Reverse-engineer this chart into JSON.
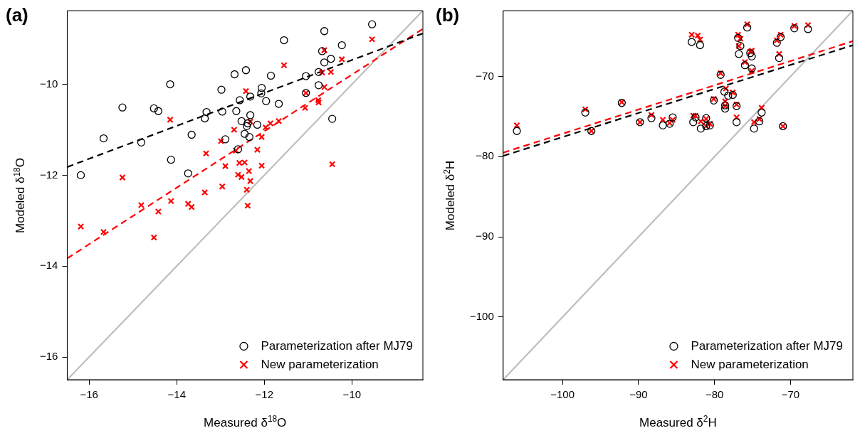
{
  "chart_data": [
    {
      "type": "scatter",
      "title": "(a)",
      "xlabel": "Measured δ$^{18}$O",
      "ylabel": "Modeled δ$^{18}$O",
      "xlim": [
        -16.5,
        -8.38
      ],
      "ylim": [
        -16.5,
        -8.38
      ],
      "xticks": [
        -16,
        -14,
        -12,
        -10
      ],
      "yticks": [
        -16,
        -14,
        -12,
        -10
      ],
      "grid": false,
      "legend": "bottom right",
      "series": [
        {
          "name": "Parameterization after MJ79",
          "color": "#000000",
          "marker": "circle",
          "x": [
            -9.54,
            -10.63,
            -11.55,
            -10.23,
            -10.68,
            -10.48,
            -10.63,
            -12.42,
            -12.68,
            -11.85,
            -11.05,
            -10.76,
            -14.15,
            -10.76,
            -12.98,
            -12.06,
            -12.07,
            -11.05,
            -12.32,
            -12.56,
            -11.96,
            -11.67,
            -15.24,
            -14.52,
            -14.42,
            -13.32,
            -12.96,
            -12.64,
            -13.36,
            -10.45,
            -12.32,
            -12.52,
            -12.38,
            -12.4,
            -12.16,
            -13.66,
            -12.45,
            -12.34,
            -12.89,
            -15.67,
            -14.81,
            -12.6,
            -14.13,
            -16.19,
            -13.74
          ],
          "values": [
            -8.68,
            -8.83,
            -9.03,
            -9.14,
            -9.27,
            -9.44,
            -9.52,
            -9.69,
            -9.78,
            -9.81,
            -9.82,
            -9.73,
            -10.0,
            -10.02,
            -10.12,
            -10.08,
            -10.2,
            -10.19,
            -10.27,
            -10.35,
            -10.37,
            -10.43,
            -10.51,
            -10.53,
            -10.59,
            -10.61,
            -10.6,
            -10.59,
            -10.75,
            -10.76,
            -10.68,
            -10.81,
            -10.86,
            -10.92,
            -10.89,
            -11.11,
            -11.09,
            -11.16,
            -11.21,
            -11.19,
            -11.28,
            -11.43,
            -11.66,
            -12.0,
            -11.96
          ]
        },
        {
          "name": "New parameterization",
          "color": "#ff0000",
          "marker": "cross",
          "x": [
            -9.54,
            -10.63,
            -11.55,
            -10.23,
            -10.68,
            -10.48,
            -10.63,
            -12.42,
            -11.05,
            -10.77,
            -10.76,
            -11.07,
            -14.15,
            -12.32,
            -11.67,
            -11.86,
            -11.97,
            -12.69,
            -12.06,
            -12.99,
            -13.33,
            -12.65,
            -12.16,
            -12.89,
            -12.57,
            -12.45,
            -12.06,
            -10.45,
            -12.35,
            -12.6,
            -12.52,
            -12.32,
            -15.24,
            -12.96,
            -13.36,
            -12.4,
            -14.81,
            -14.13,
            -13.74,
            -13.66,
            -12.38,
            -14.42,
            -16.19,
            -15.67,
            -14.52
          ],
          "values": [
            -9.01,
            -9.25,
            -9.58,
            -9.45,
            -9.74,
            -9.73,
            -10.06,
            -10.15,
            -10.19,
            -10.35,
            -10.4,
            -10.52,
            -10.78,
            -10.82,
            -10.81,
            -10.86,
            -10.95,
            -11.0,
            -11.16,
            -11.25,
            -11.52,
            -11.46,
            -11.44,
            -11.8,
            -11.73,
            -11.72,
            -11.79,
            -11.76,
            -11.91,
            -11.99,
            -12.04,
            -12.13,
            -12.05,
            -12.25,
            -12.38,
            -12.32,
            -12.66,
            -12.57,
            -12.63,
            -12.7,
            -12.67,
            -12.8,
            -13.13,
            -13.25,
            -13.37
          ]
        },
        {
          "type": "line",
          "color": "#000000",
          "marker": "none",
          "line_style": "dashed",
          "x": [
            -16.5,
            -8.38
          ],
          "values": [
            -11.82,
            -8.88
          ]
        },
        {
          "type": "line",
          "color": "#ff0000",
          "marker": "none",
          "line_style": "dashed",
          "x": [
            -16.5,
            -8.38
          ],
          "values": [
            -13.83,
            -8.78
          ]
        },
        {
          "type": "line",
          "color": "#bebebe",
          "marker": "none",
          "line_style": "solid",
          "x": [
            -16.5,
            -8.38
          ],
          "values": [
            -16.5,
            -8.38
          ]
        }
      ]
    },
    {
      "type": "scatter",
      "title": "(b)",
      "xlabel": "Measured δ$^{2}$H",
      "ylabel": "Modeled δ$^{2}$H",
      "xlim": [
        -107.8,
        -61.8
      ],
      "ylim": [
        -107.8,
        -61.8
      ],
      "xticks": [
        -100,
        -90,
        -80,
        -70
      ],
      "yticks": [
        -100,
        -90,
        -80,
        -70
      ],
      "grid": false,
      "legend": "bottom right",
      "series": [
        {
          "name": "Parameterization after MJ79",
          "color": "#000000",
          "marker": "circle",
          "x": [
            -106.0,
            -97.0,
            -96.2,
            -92.2,
            -89.8,
            -88.3,
            -86.8,
            -85.9,
            -85.5,
            -83.0,
            -81.9,
            -82.8,
            -81.8,
            -81.1,
            -81.1,
            -80.6,
            -80.1,
            -79.2,
            -78.7,
            -78.2,
            -77.6,
            -78.6,
            -78.6,
            -77.1,
            -77.1,
            -76.9,
            -76.6,
            -76.8,
            -76.0,
            -75.7,
            -75.1,
            -75.1,
            -75.3,
            -74.8,
            -74.1,
            -73.8,
            -71.8,
            -71.3,
            -71.5,
            -71.0,
            -69.5,
            -67.7,
            -82.5
          ],
          "values": [
            -76.8,
            -74.5,
            -76.8,
            -73.3,
            -75.7,
            -75.2,
            -76.1,
            -75.9,
            -75.1,
            -65.7,
            -66.1,
            -75.7,
            -76.5,
            -75.2,
            -76.2,
            -76.1,
            -73.0,
            -69.8,
            -71.9,
            -72.4,
            -72.3,
            -73.6,
            -74.0,
            -73.7,
            -75.7,
            -65.2,
            -66.2,
            -67.2,
            -68.6,
            -63.9,
            -67.5,
            -69.0,
            -67.1,
            -76.5,
            -75.6,
            -74.5,
            -65.8,
            -65.1,
            -67.7,
            -76.2,
            -64.0,
            -64.1,
            -75.1
          ]
        },
        {
          "name": "New parameterization",
          "color": "#ff0000",
          "marker": "cross",
          "x": [
            -106.0,
            -97.0,
            -96.2,
            -92.2,
            -89.8,
            -88.3,
            -86.8,
            -85.9,
            -85.5,
            -83.0,
            -82.2,
            -81.9,
            -82.8,
            -81.8,
            -81.1,
            -81.1,
            -80.6,
            -80.1,
            -79.2,
            -78.5,
            -77.6,
            -78.6,
            -78.6,
            -77.1,
            -77.1,
            -76.9,
            -76.6,
            -76.8,
            -76.0,
            -75.7,
            -75.3,
            -75.1,
            -75.1,
            -74.8,
            -74.1,
            -73.8,
            -71.8,
            -71.3,
            -71.5,
            -71.0,
            -69.5,
            -67.7,
            -82.5
          ],
          "values": [
            -76.1,
            -74.1,
            -76.8,
            -73.2,
            -75.7,
            -74.8,
            -75.4,
            -75.8,
            -75.4,
            -64.8,
            -64.9,
            -65.4,
            -74.9,
            -75.6,
            -75.3,
            -76.2,
            -75.9,
            -72.8,
            -69.6,
            -71.5,
            -72.0,
            -73.1,
            -73.7,
            -73.5,
            -75.1,
            -64.8,
            -65.3,
            -66.2,
            -68.2,
            -63.5,
            -66.9,
            -66.8,
            -69.3,
            -75.7,
            -75.3,
            -73.9,
            -65.5,
            -64.8,
            -67.2,
            -76.2,
            -63.7,
            -63.6,
            -74.9
          ]
        },
        {
          "type": "line",
          "color": "#000000",
          "marker": "none",
          "line_style": "dashed",
          "x": [
            -107.8,
            -61.8
          ],
          "values": [
            -79.9,
            -66.1
          ]
        },
        {
          "type": "line",
          "color": "#ff0000",
          "marker": "none",
          "line_style": "dashed",
          "x": [
            -107.8,
            -61.8
          ],
          "values": [
            -79.5,
            -65.6
          ]
        },
        {
          "type": "line",
          "color": "#bebebe",
          "marker": "none",
          "line_style": "solid",
          "x": [
            -107.8,
            -61.8
          ],
          "values": [
            -107.8,
            -61.8
          ]
        }
      ]
    }
  ]
}
